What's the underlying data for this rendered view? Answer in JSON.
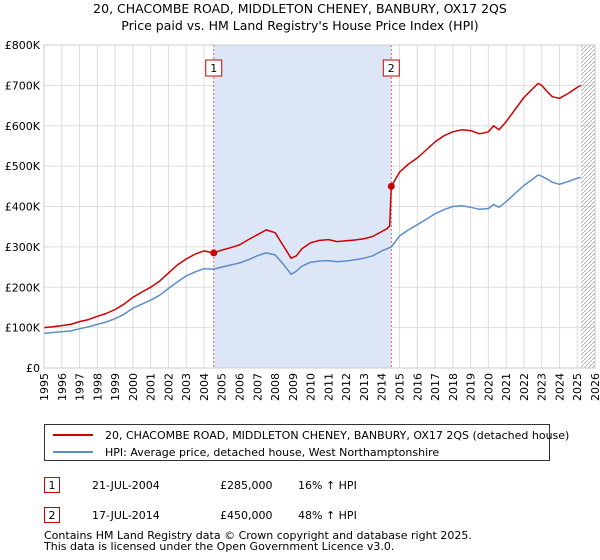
{
  "title": {
    "line1": "20, CHACOMBE ROAD, MIDDLETON CHENEY, BANBURY, OX17 2QS",
    "line2": "Price paid vs. HM Land Registry's House Price Index (HPI)"
  },
  "chart_data": {
    "type": "line",
    "title": "Price paid vs. HM Land Registry's House Price Index (HPI)",
    "xlabel": "",
    "ylabel": "",
    "xlim": [
      1995,
      2026
    ],
    "ylim": [
      0,
      800000
    ],
    "x_ticks": [
      "1995",
      "1996",
      "1997",
      "1998",
      "1999",
      "2000",
      "2001",
      "2002",
      "2003",
      "2004",
      "2005",
      "2006",
      "2007",
      "2008",
      "2009",
      "2010",
      "2011",
      "2012",
      "2013",
      "2014",
      "2015",
      "2016",
      "2017",
      "2018",
      "2019",
      "2020",
      "2021",
      "2022",
      "2023",
      "2024",
      "2025",
      "2026"
    ],
    "y_ticks": [
      {
        "value": 0,
        "label": "£0"
      },
      {
        "value": 100000,
        "label": "£100K"
      },
      {
        "value": 200000,
        "label": "£200K"
      },
      {
        "value": 300000,
        "label": "£300K"
      },
      {
        "value": 400000,
        "label": "£400K"
      },
      {
        "value": 500000,
        "label": "£500K"
      },
      {
        "value": 600000,
        "label": "£600K"
      },
      {
        "value": 700000,
        "label": "£700K"
      },
      {
        "value": 800000,
        "label": "£800K"
      }
    ],
    "grid": true,
    "shaded_period": [
      2004.55,
      2014.54
    ],
    "forecast_from": 2025.2,
    "colors": {
      "property": "#cc0000",
      "hpi": "#5b8dc9",
      "shade": "#dde6f7",
      "vline": "#e06060"
    },
    "series": [
      {
        "name": "20, CHACOMBE ROAD, MIDDLETON CHENEY, BANBURY, OX17 2QS (detached house)",
        "color": "#cc0000",
        "x": [
          1995.0,
          1995.5,
          1996.0,
          1996.5,
          1997.0,
          1997.5,
          1998.0,
          1998.5,
          1999.0,
          1999.5,
          2000.0,
          2000.5,
          2001.0,
          2001.5,
          2002.0,
          2002.5,
          2003.0,
          2003.5,
          2004.0,
          2004.55,
          2005.0,
          2005.5,
          2006.0,
          2006.5,
          2007.0,
          2007.5,
          2008.0,
          2008.5,
          2008.9,
          2009.2,
          2009.5,
          2010.0,
          2010.5,
          2011.0,
          2011.5,
          2012.0,
          2012.5,
          2013.0,
          2013.5,
          2014.0,
          2014.3,
          2014.45,
          2014.54,
          2015.0,
          2015.5,
          2016.0,
          2016.5,
          2017.0,
          2017.5,
          2018.0,
          2018.5,
          2019.0,
          2019.5,
          2020.0,
          2020.3,
          2020.6,
          2021.0,
          2021.5,
          2022.0,
          2022.5,
          2022.8,
          2023.0,
          2023.3,
          2023.6,
          2024.0,
          2024.5,
          2025.0,
          2025.2
        ],
        "y": [
          100000,
          102000,
          105000,
          108000,
          115000,
          120000,
          128000,
          135000,
          145000,
          158000,
          175000,
          188000,
          200000,
          215000,
          235000,
          255000,
          270000,
          282000,
          290000,
          285000,
          292000,
          298000,
          305000,
          318000,
          330000,
          342000,
          335000,
          300000,
          272000,
          278000,
          295000,
          310000,
          316000,
          318000,
          313000,
          315000,
          317000,
          320000,
          326000,
          338000,
          345000,
          352000,
          450000,
          485000,
          505000,
          520000,
          540000,
          560000,
          575000,
          585000,
          590000,
          588000,
          580000,
          585000,
          600000,
          590000,
          610000,
          640000,
          670000,
          692000,
          705000,
          700000,
          685000,
          672000,
          668000,
          680000,
          695000,
          700000
        ]
      },
      {
        "name": "HPI: Average price, detached house, West Northamptonshire",
        "color": "#5b8dc9",
        "x": [
          1995.0,
          1995.5,
          1996.0,
          1996.5,
          1997.0,
          1997.5,
          1998.0,
          1998.5,
          1999.0,
          1999.5,
          2000.0,
          2000.5,
          2001.0,
          2001.5,
          2002.0,
          2002.5,
          2003.0,
          2003.5,
          2004.0,
          2004.55,
          2005.0,
          2005.5,
          2006.0,
          2006.5,
          2007.0,
          2007.5,
          2008.0,
          2008.5,
          2008.9,
          2009.2,
          2009.5,
          2010.0,
          2010.5,
          2011.0,
          2011.5,
          2012.0,
          2012.5,
          2013.0,
          2013.5,
          2014.0,
          2014.54,
          2015.0,
          2015.5,
          2016.0,
          2016.5,
          2017.0,
          2017.5,
          2018.0,
          2018.5,
          2019.0,
          2019.5,
          2020.0,
          2020.3,
          2020.6,
          2021.0,
          2021.5,
          2022.0,
          2022.5,
          2022.8,
          2023.0,
          2023.3,
          2023.6,
          2024.0,
          2024.5,
          2025.0,
          2025.2
        ],
        "y": [
          86000,
          88000,
          90000,
          92000,
          97000,
          102000,
          108000,
          114000,
          122000,
          133000,
          148000,
          158000,
          168000,
          180000,
          197000,
          213000,
          228000,
          238000,
          246000,
          245000,
          250000,
          255000,
          260000,
          268000,
          278000,
          285000,
          280000,
          255000,
          232000,
          240000,
          252000,
          262000,
          265000,
          266000,
          263000,
          265000,
          268000,
          272000,
          278000,
          290000,
          300000,
          327000,
          342000,
          355000,
          368000,
          382000,
          392000,
          400000,
          402000,
          398000,
          393000,
          395000,
          405000,
          398000,
          412000,
          432000,
          452000,
          468000,
          478000,
          475000,
          468000,
          460000,
          455000,
          462000,
          470000,
          472000
        ]
      }
    ],
    "transactions": [
      {
        "num": "1",
        "x": 2004.55,
        "price_value": 285000,
        "date": "21-JUL-2004",
        "price": "£285,000",
        "hpi_change": "16% ↑ HPI"
      },
      {
        "num": "2",
        "x": 2014.54,
        "price_value": 450000,
        "date": "17-JUL-2014",
        "price": "£450,000",
        "hpi_change": "48% ↑ HPI"
      }
    ]
  },
  "legend": {
    "property_label": "20, CHACOMBE ROAD, MIDDLETON CHENEY, BANBURY, OX17 2QS (detached house)",
    "hpi_label": "HPI: Average price, detached house, West Northamptonshire"
  },
  "footer": {
    "line1": "Contains HM Land Registry data © Crown copyright and database right 2025.",
    "line2": "This data is licensed under the Open Government Licence v3.0."
  }
}
